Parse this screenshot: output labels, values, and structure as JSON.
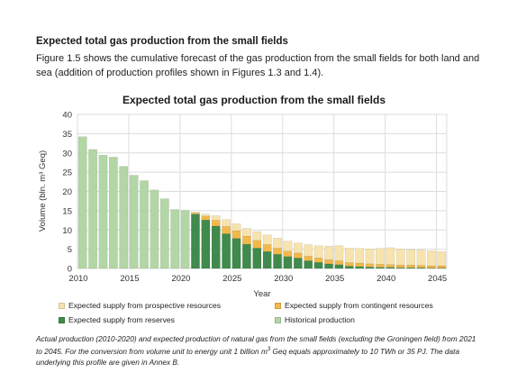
{
  "section_heading": "Expected total gas production from the small fields",
  "intro_text": "Figure 1.5 shows the cumulative forecast of the gas production from the small fields for both land and sea (addition of production profiles shown in Figures 1.3 and 1.4).",
  "caption_part1": "Actual production (2010-2020) and expected production of natural gas from the small fields (excluding the Groningen field) from 2021 to 2045. For the conversion from volume unit to energy unit 1 billion m",
  "caption_sup": "3",
  "caption_part2": " Geq equals approximately to 10 TWh or 35 PJ. The data underlying this profile are given in Annex B.",
  "colors": {
    "historical": "#b3d6a5",
    "reserves": "#3f8a4c",
    "contingent": "#f2b84a",
    "prospective": "#f7e3ae",
    "grid": "#dcdcdc",
    "axis": "#888888"
  },
  "chart_data": {
    "type": "bar",
    "stacked": true,
    "title": "Expected total gas production from the small fields",
    "xlabel": "Year",
    "ylabel": "Volume (bln. m³ Geq)",
    "ylim": [
      0,
      40
    ],
    "yticks": [
      0,
      5,
      10,
      15,
      20,
      25,
      30,
      35,
      40
    ],
    "xticks": [
      2010,
      2015,
      2020,
      2025,
      2030,
      2035,
      2040,
      2045
    ],
    "grid": true,
    "legend_position": "bottom",
    "categories": [
      2010,
      2011,
      2012,
      2013,
      2014,
      2015,
      2016,
      2017,
      2018,
      2019,
      2020,
      2021,
      2022,
      2023,
      2024,
      2025,
      2026,
      2027,
      2028,
      2029,
      2030,
      2031,
      2032,
      2033,
      2034,
      2035,
      2036,
      2037,
      2038,
      2039,
      2040,
      2041,
      2042,
      2043,
      2044,
      2045
    ],
    "series": [
      {
        "name": "Historical production",
        "key": "historical",
        "values": [
          34.2,
          30.9,
          29.4,
          28.9,
          26.5,
          24.2,
          22.8,
          20.4,
          18.1,
          15.3,
          15.1,
          0,
          0,
          0,
          0,
          0,
          0,
          0,
          0,
          0,
          0,
          0,
          0,
          0,
          0,
          0,
          0,
          0,
          0,
          0,
          0,
          0,
          0,
          0,
          0,
          0
        ]
      },
      {
        "name": "Expected supply from reserves",
        "key": "reserves",
        "values": [
          0,
          0,
          0,
          0,
          0,
          0,
          0,
          0,
          0,
          0,
          0,
          14.1,
          12.6,
          11.0,
          9.0,
          7.8,
          6.3,
          5.3,
          4.4,
          3.7,
          3.1,
          2.7,
          2.0,
          1.6,
          1.2,
          1.0,
          0.6,
          0.5,
          0.4,
          0.3,
          0.3,
          0.2,
          0.2,
          0.2,
          0.1,
          0.1
        ]
      },
      {
        "name": "Expected supply from contingent resources",
        "key": "contingent",
        "values": [
          0,
          0,
          0,
          0,
          0,
          0,
          0,
          0,
          0,
          0,
          0,
          0.3,
          1.0,
          1.5,
          1.9,
          2.0,
          2.1,
          2.0,
          1.8,
          1.6,
          1.4,
          1.3,
          1.2,
          1.1,
          1.1,
          1.0,
          0.9,
          0.9,
          0.8,
          0.8,
          0.7,
          0.7,
          0.7,
          0.6,
          0.6,
          0.6
        ]
      },
      {
        "name": "Expected supply from prospective resources",
        "key": "prospective",
        "values": [
          0,
          0,
          0,
          0,
          0,
          0,
          0,
          0,
          0,
          0,
          0,
          0.2,
          0.5,
          1.2,
          1.8,
          1.8,
          2.0,
          2.3,
          2.5,
          2.6,
          2.6,
          2.6,
          3.0,
          3.2,
          3.5,
          3.9,
          3.8,
          3.8,
          3.9,
          4.1,
          4.4,
          4.2,
          4.0,
          4.0,
          3.9,
          3.7
        ]
      }
    ],
    "legend": [
      {
        "label": "Expected supply from prospective resources",
        "key": "prospective"
      },
      {
        "label": "Expected supply from contingent resources",
        "key": "contingent"
      },
      {
        "label": "Expected supply from reserves",
        "key": "reserves"
      },
      {
        "label": "Historical production",
        "key": "historical"
      }
    ]
  }
}
